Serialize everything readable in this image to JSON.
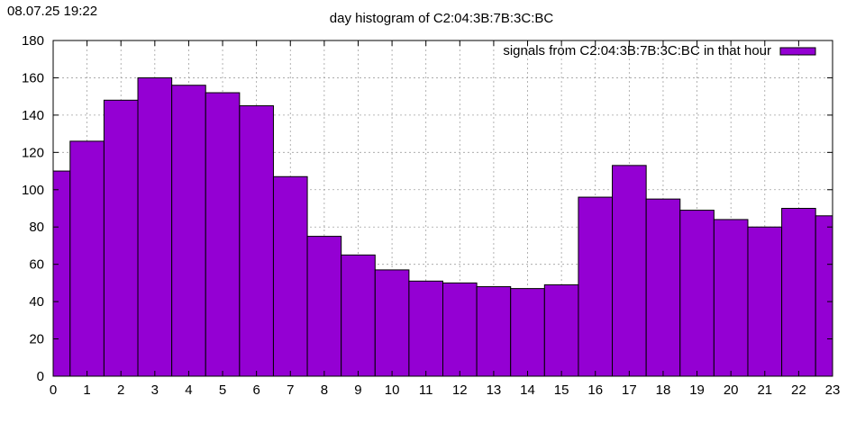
{
  "timestamp": "08.07.25 19:22",
  "chart_data": {
    "type": "bar",
    "title": "day histogram of C2:04:3B:7B:3C:BC",
    "xlabel": "",
    "ylabel": "",
    "x_ticks": [
      "0",
      "1",
      "2",
      "3",
      "4",
      "5",
      "6",
      "7",
      "8",
      "9",
      "10",
      "11",
      "12",
      "13",
      "14",
      "15",
      "16",
      "17",
      "18",
      "19",
      "20",
      "21",
      "22",
      "23"
    ],
    "y_ticks": [
      0,
      20,
      40,
      60,
      80,
      100,
      120,
      140,
      160,
      180
    ],
    "xlim": [
      0,
      23
    ],
    "ylim": [
      0,
      180
    ],
    "grid": true,
    "legend_position": "top-right",
    "series": [
      {
        "name": "signals from C2:04:3B:7B:3C:BC in that hour",
        "color": "#9400d3",
        "hours": [
          0,
          1,
          2,
          3,
          4,
          5,
          6,
          7,
          8,
          9,
          10,
          11,
          12,
          13,
          14,
          15,
          16,
          17,
          18,
          19,
          20,
          21,
          22,
          23
        ],
        "values": [
          110,
          126,
          148,
          160,
          156,
          152,
          145,
          107,
          75,
          65,
          57,
          51,
          50,
          48,
          47,
          49,
          96,
          113,
          95,
          89,
          84,
          80,
          90,
          86
        ]
      }
    ]
  }
}
